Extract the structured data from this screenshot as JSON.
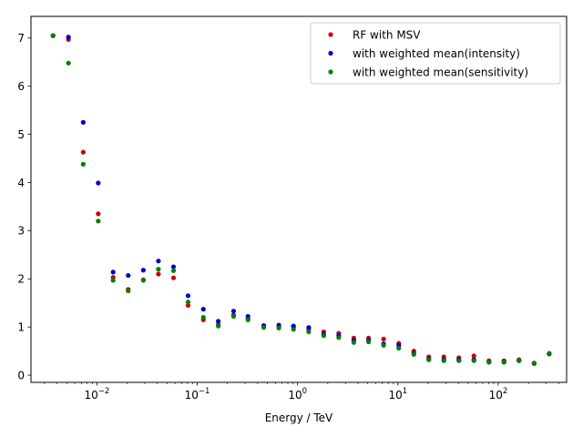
{
  "chart_data": {
    "type": "scatter",
    "title": "",
    "xlabel": "Energy / TeV",
    "ylabel": "",
    "xscale": "log",
    "xlim": [
      0.0022,
      480
    ],
    "ylim": [
      -0.15,
      7.45
    ],
    "grid": false,
    "legend_position": "top-right",
    "x_tick_labels": [
      {
        "value": 0.01,
        "base": "10",
        "exp": "−2"
      },
      {
        "value": 0.1,
        "base": "10",
        "exp": "−1"
      },
      {
        "value": 1,
        "base": "10",
        "exp": "0"
      },
      {
        "value": 10,
        "base": "10",
        "exp": "1"
      },
      {
        "value": 100,
        "base": "10",
        "exp": "2"
      }
    ],
    "y_ticks": [
      0,
      1,
      2,
      3,
      4,
      5,
      6,
      7
    ],
    "y_tick_labels": [
      "0",
      "1",
      "2",
      "3",
      "4",
      "5",
      "6",
      "7"
    ],
    "series": [
      {
        "name": "RF with MSV",
        "color": "#cc0000",
        "x": [
          0.00365,
          0.0052,
          0.0073,
          0.0103,
          0.0145,
          0.0205,
          0.029,
          0.041,
          0.058,
          0.081,
          0.115,
          0.162,
          0.23,
          0.32,
          0.46,
          0.65,
          0.91,
          1.29,
          1.82,
          2.57,
          3.63,
          5.1,
          7.2,
          10.2,
          14.4,
          20.3,
          28.7,
          40.5,
          57.2,
          80.8,
          114,
          161,
          228,
          322
        ],
        "y": [
          7.05,
          6.97,
          4.63,
          3.35,
          2.03,
          1.78,
          1.98,
          2.1,
          2.02,
          1.45,
          1.15,
          1.05,
          1.25,
          1.17,
          1.0,
          1.0,
          1.0,
          0.95,
          0.9,
          0.87,
          0.77,
          0.77,
          0.75,
          0.66,
          0.5,
          0.38,
          0.38,
          0.36,
          0.4,
          0.3,
          0.3,
          0.32,
          0.24,
          0.45
        ]
      },
      {
        "name": "with weighted mean(intensity)",
        "color": "#0000cc",
        "x": [
          0.00365,
          0.0052,
          0.0073,
          0.0103,
          0.0145,
          0.0205,
          0.029,
          0.041,
          0.058,
          0.081,
          0.115,
          0.162,
          0.23,
          0.32,
          0.46,
          0.65,
          0.91,
          1.29,
          1.82,
          2.57,
          3.63,
          5.1,
          7.2,
          10.2,
          14.4,
          20.3,
          28.7,
          40.5,
          57.2,
          80.8,
          114,
          161,
          228,
          322
        ],
        "y": [
          7.05,
          7.02,
          5.25,
          3.99,
          2.14,
          2.07,
          2.18,
          2.37,
          2.25,
          1.65,
          1.37,
          1.12,
          1.33,
          1.22,
          1.03,
          1.04,
          1.02,
          0.99,
          0.85,
          0.82,
          0.72,
          0.72,
          0.65,
          0.62,
          0.45,
          0.34,
          0.32,
          0.32,
          0.32,
          0.27,
          0.27,
          0.3,
          0.25,
          0.44
        ]
      },
      {
        "name": "with weighted mean(sensitivity)",
        "color": "#007f00",
        "x": [
          0.00365,
          0.0052,
          0.0073,
          0.0103,
          0.0145,
          0.0205,
          0.029,
          0.041,
          0.058,
          0.081,
          0.115,
          0.162,
          0.23,
          0.32,
          0.46,
          0.65,
          0.91,
          1.29,
          1.82,
          2.57,
          3.63,
          5.1,
          7.2,
          10.2,
          14.4,
          20.3,
          28.7,
          40.5,
          57.2,
          80.8,
          114,
          161,
          228,
          322
        ],
        "y": [
          7.05,
          6.48,
          4.38,
          3.2,
          1.97,
          1.75,
          1.97,
          2.2,
          2.17,
          1.52,
          1.2,
          1.02,
          1.22,
          1.15,
          0.99,
          0.98,
          0.95,
          0.9,
          0.82,
          0.78,
          0.68,
          0.69,
          0.62,
          0.56,
          0.43,
          0.32,
          0.3,
          0.3,
          0.3,
          0.27,
          0.27,
          0.3,
          0.25,
          0.45
        ]
      }
    ]
  }
}
